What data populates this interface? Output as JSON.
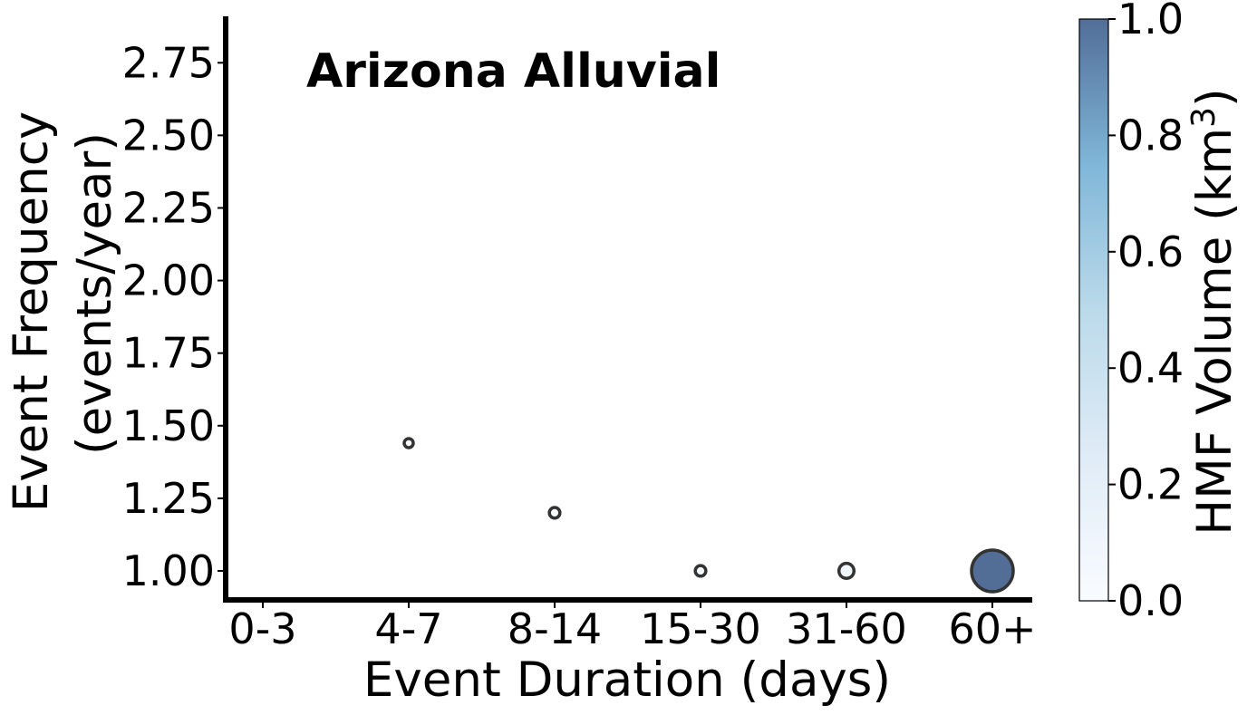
{
  "chart_data": {
    "type": "scatter",
    "title": "Arizona Alluvial",
    "xlabel": "Event Duration (days)",
    "ylabel_line1": "Event Frequency",
    "ylabel_line2": "(events/year)",
    "categories": [
      "0-3",
      "4-7",
      "8-14",
      "15-30",
      "31-60",
      "60+"
    ],
    "yticks": [
      "1.00",
      "1.25",
      "1.50",
      "1.75",
      "2.00",
      "2.25",
      "2.50",
      "2.75"
    ],
    "ylim": [
      0.9,
      2.91
    ],
    "grid": false,
    "points": [
      {
        "category": "4-7",
        "frequency": 1.44,
        "hmf_volume": 0.01
      },
      {
        "category": "8-14",
        "frequency": 1.2,
        "hmf_volume": 0.02
      },
      {
        "category": "15-30",
        "frequency": 1.0,
        "hmf_volume": 0.02
      },
      {
        "category": "31-60",
        "frequency": 1.0,
        "hmf_volume": 0.07
      },
      {
        "category": "60+",
        "frequency": 1.0,
        "hmf_volume": 1.0
      }
    ],
    "colorbar": {
      "label": "HMF Volume (km",
      "label_sup": "3",
      "label_end": ")",
      "range": [
        0.0,
        1.0
      ],
      "ticks": [
        "0.0",
        "0.2",
        "0.4",
        "0.6",
        "0.8",
        "1.0"
      ],
      "colormap_stops": [
        "#f7fbff",
        "#c6dbef",
        "#6baed6",
        "#2171b5",
        "#08306b"
      ],
      "alpha": 0.7
    }
  }
}
